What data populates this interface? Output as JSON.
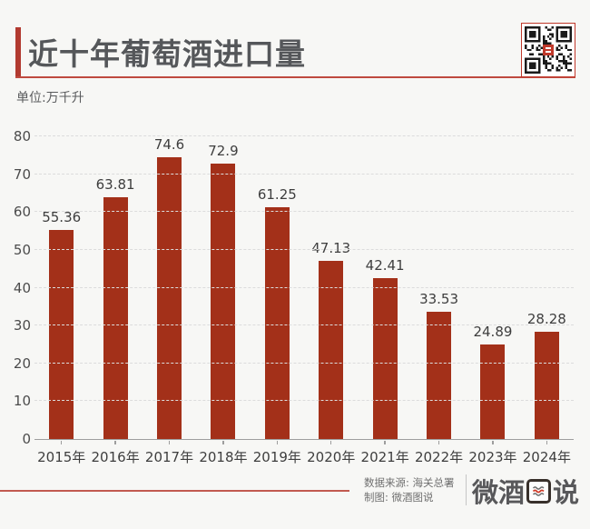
{
  "page": {
    "title": "近十年葡萄酒进口量",
    "unit_label": "单位:万千升"
  },
  "colors": {
    "accent_red": "#b23a30",
    "bar_red": "#a33019",
    "background": "#f7f7f5",
    "title_text": "#55575a",
    "qr_center_logo": "#c0392b"
  },
  "chart_data": {
    "type": "bar",
    "title": "近十年葡萄酒进口量",
    "unit": "万千升",
    "categories": [
      "2015年",
      "2016年",
      "2017年",
      "2018年",
      "2019年",
      "2020年",
      "2021年",
      "2022年",
      "2023年",
      "2024年"
    ],
    "values": [
      55.36,
      63.81,
      74.6,
      72.9,
      61.25,
      47.13,
      42.41,
      33.53,
      24.89,
      28.28
    ],
    "value_labels": [
      "55.36",
      "63.81",
      "74.6",
      "72.9",
      "61.25",
      "47.13",
      "42.41",
      "33.53",
      "24.89",
      "28.28"
    ],
    "xlabel": "",
    "ylabel": "",
    "ylim": [
      0,
      80
    ],
    "ytick_interval": 10,
    "ytick_labels": [
      "0",
      "10",
      "20",
      "30",
      "40",
      "50",
      "60",
      "70",
      "80"
    ],
    "grid": "horizontal-dashed",
    "legend": "none",
    "bar_color": "#a33019"
  },
  "qr": {
    "label": "qr-code"
  },
  "footer": {
    "source": "数据来源: 海关总署",
    "credit": "制图: 微酒图说",
    "logo_text": "微酒图说",
    "logo_prefix": "微酒",
    "logo_suffix": "说",
    "logo_boxed_char": "图"
  }
}
